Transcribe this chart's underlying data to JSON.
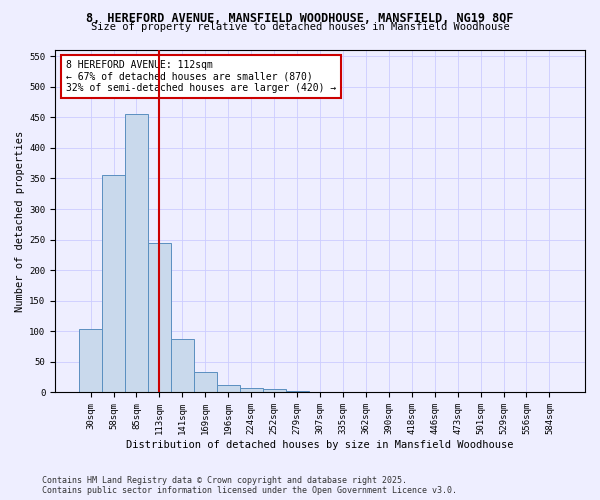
{
  "title1": "8, HEREFORD AVENUE, MANSFIELD WOODHOUSE, MANSFIELD, NG19 8QF",
  "title2": "Size of property relative to detached houses in Mansfield Woodhouse",
  "xlabel": "Distribution of detached houses by size in Mansfield Woodhouse",
  "ylabel": "Number of detached properties",
  "categories": [
    "30sqm",
    "58sqm",
    "85sqm",
    "113sqm",
    "141sqm",
    "169sqm",
    "196sqm",
    "224sqm",
    "252sqm",
    "279sqm",
    "307sqm",
    "335sqm",
    "362sqm",
    "390sqm",
    "418sqm",
    "446sqm",
    "473sqm",
    "501sqm",
    "529sqm",
    "556sqm",
    "584sqm"
  ],
  "values": [
    103,
    355,
    455,
    245,
    88,
    33,
    13,
    8,
    5,
    3,
    1,
    1,
    0,
    0,
    0,
    0,
    0,
    0,
    0,
    0,
    0
  ],
  "bar_color": "#c9d9ec",
  "bar_edge_color": "#5a8fc0",
  "vline_x": 3.0,
  "vline_color": "#cc0000",
  "annotation_text": "8 HEREFORD AVENUE: 112sqm\n← 67% of detached houses are smaller (870)\n32% of semi-detached houses are larger (420) →",
  "annotation_box_color": "#ffffff",
  "annotation_box_edge": "#cc0000",
  "ylim": [
    0,
    560
  ],
  "yticks": [
    0,
    50,
    100,
    150,
    200,
    250,
    300,
    350,
    400,
    450,
    500,
    550
  ],
  "grid_color": "#ccccff",
  "background_color": "#eeeeff",
  "footer1": "Contains HM Land Registry data © Crown copyright and database right 2025.",
  "footer2": "Contains public sector information licensed under the Open Government Licence v3.0.",
  "title1_fontsize": 8.5,
  "title2_fontsize": 7.5,
  "xlabel_fontsize": 7.5,
  "ylabel_fontsize": 7.5,
  "tick_fontsize": 6.5,
  "annotation_fontsize": 7,
  "footer_fontsize": 6
}
